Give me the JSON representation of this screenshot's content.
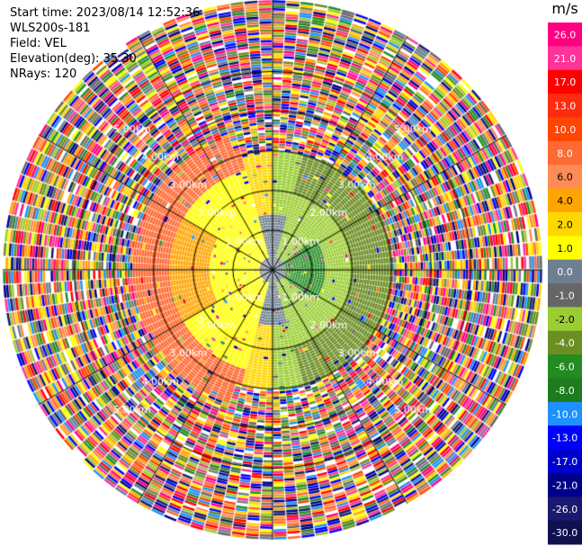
{
  "header": {
    "start_time": "Start time: 2023/08/14 12:52:36",
    "instrument": "WLS200s-181",
    "field": "Field: VEL",
    "elevation": "Elevation(deg): 35.30",
    "nrays": "NRays: 120"
  },
  "chart_data": {
    "type": "heatmap",
    "projection": "polar-ppi",
    "field": "VEL",
    "unit": "m/s",
    "elevation_deg": 35.3,
    "nrays": 120,
    "range_rings_km": [
      1.0,
      2.0,
      3.0,
      4.0,
      5.0
    ],
    "ring_labels": [
      "1.00km",
      "2.00km",
      "3.00km",
      "4.00km",
      "5.00km"
    ],
    "max_range_km": 6.8,
    "spokes_deg": [
      0,
      30,
      60,
      90,
      120,
      150,
      180,
      210,
      240,
      270,
      300,
      330
    ],
    "valid_region_km": 3.0,
    "colorbar": {
      "tick_labels": [
        "26.0",
        "21.0",
        "17.0",
        "13.0",
        "10.0",
        "8.0",
        "6.0",
        "4.0",
        "2.0",
        "1.0",
        "0.0",
        "-1.0",
        "-2.0",
        "-4.0",
        "-6.0",
        "-8.0",
        "-10.0",
        "-13.0",
        "-17.0",
        "-21.0",
        "-26.0",
        "-30.0"
      ],
      "colors": [
        "#ff0080",
        "#ff3399",
        "#ff0000",
        "#ff2a0f",
        "#ff4500",
        "#ff6a33",
        "#ff8c55",
        "#ffa500",
        "#ffd700",
        "#ffff00",
        "#6d7f90",
        "#666666",
        "#9acd32",
        "#6b8e23",
        "#228b22",
        "#1e7b1e",
        "#1e90ff",
        "#0000ff",
        "#0000cd",
        "#00008b",
        "#191970",
        "#101050"
      ]
    }
  }
}
